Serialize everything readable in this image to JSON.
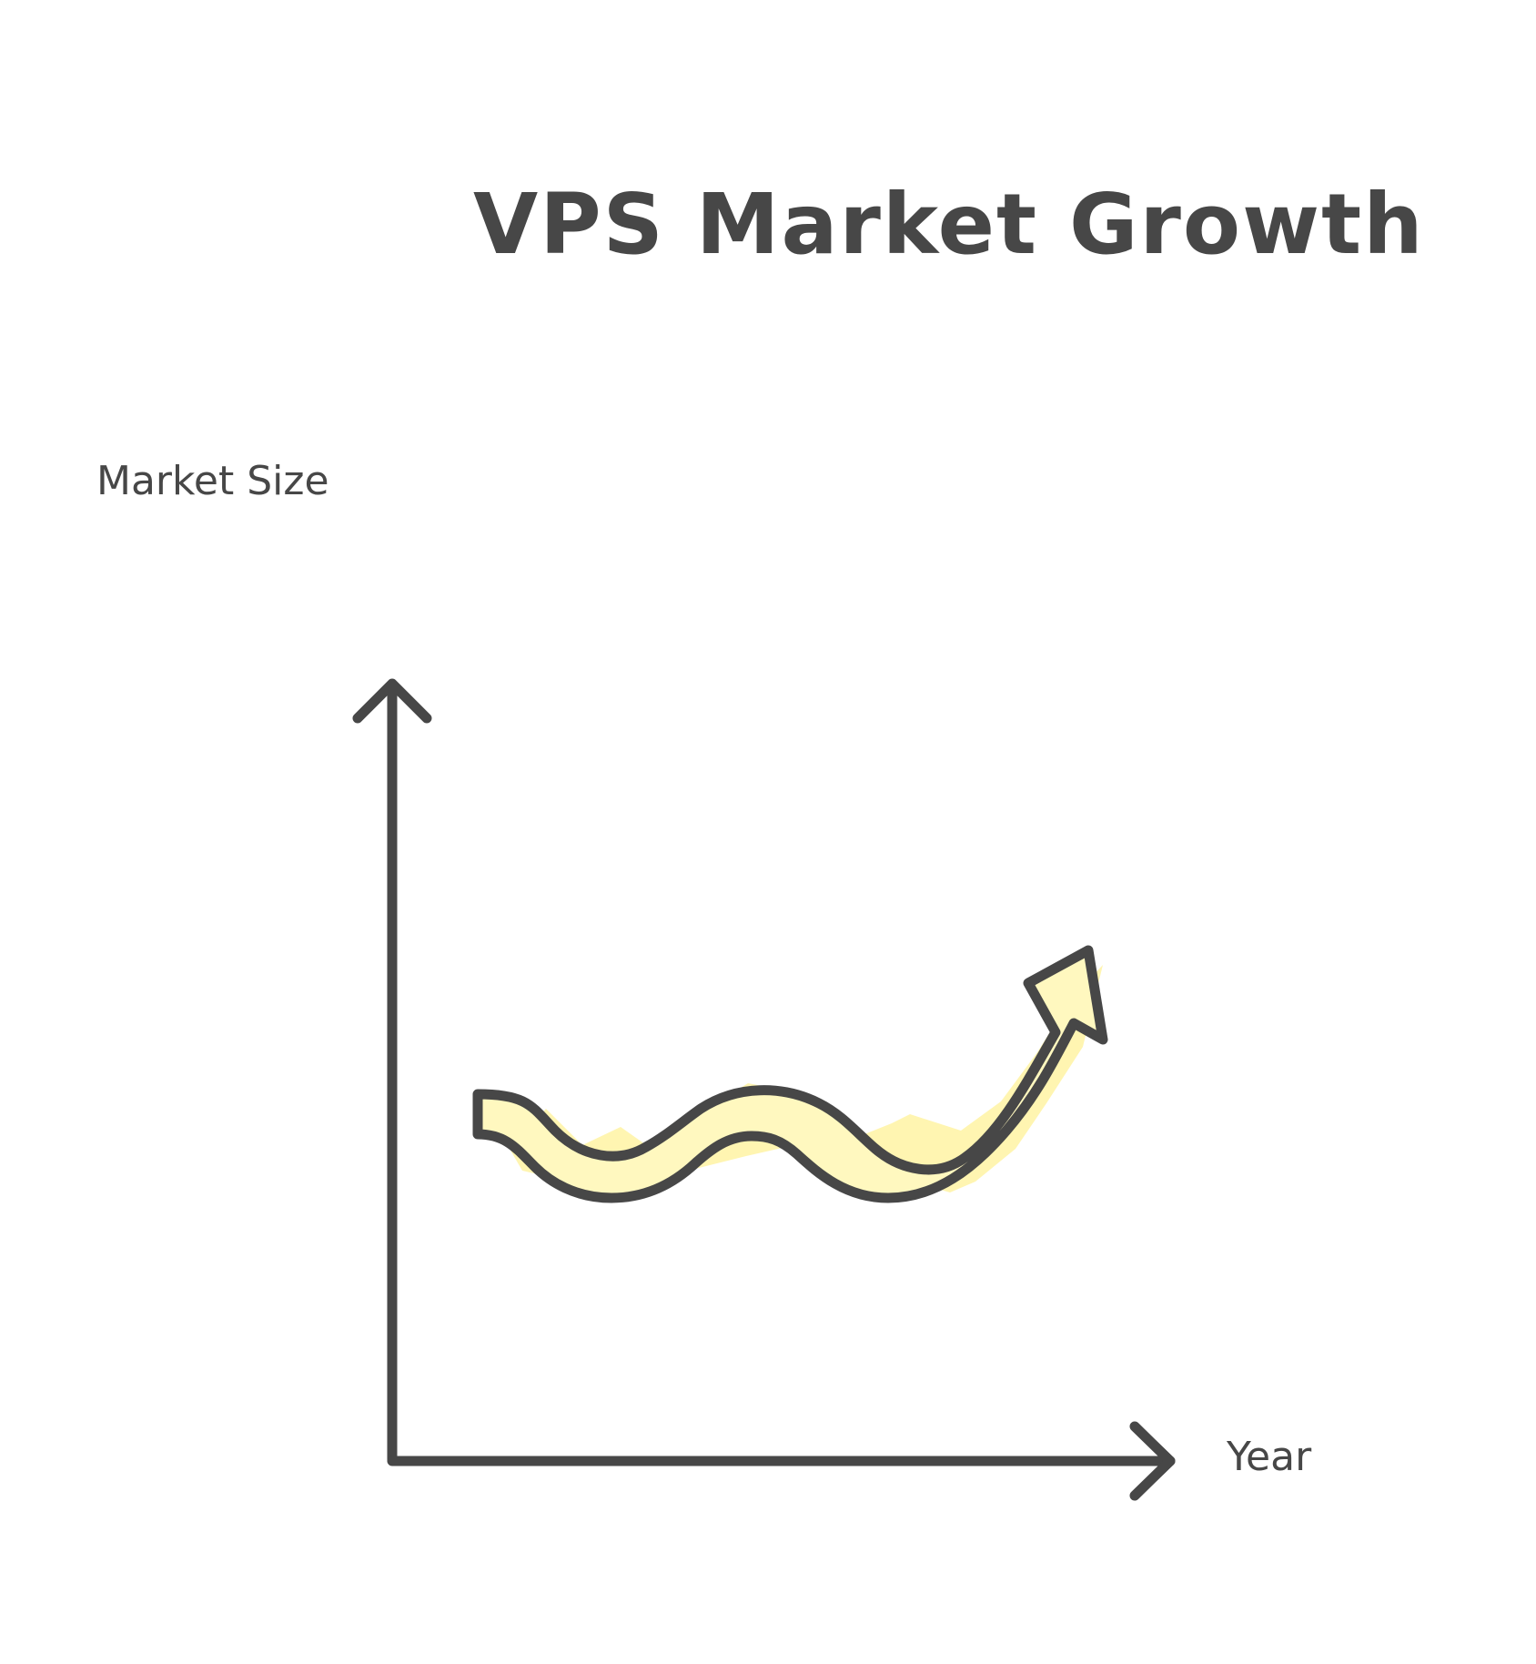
{
  "title": "VPS Market Growth",
  "y_axis_label": "Market Size",
  "x_axis_label": "Year",
  "colors": {
    "ink": "#474747",
    "arrow_fill": "#fff8bf",
    "highlight": "#fff3a3",
    "background": "#ffffff"
  }
}
